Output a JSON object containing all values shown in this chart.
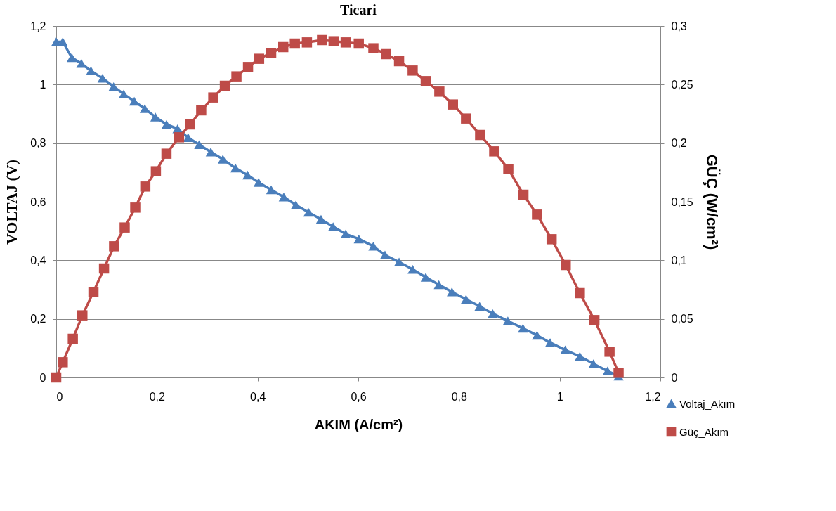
{
  "chart_data": {
    "type": "line",
    "title": "Ticari",
    "xlabel": "AKIM (A/cm²)",
    "ylabel": "VOLTAJ (V)",
    "y2label": "GÜÇ (W/cm²)",
    "xlim": [
      0,
      1.2
    ],
    "xticks": [
      0,
      {
        "value": 0.2,
        "label": "0,2"
      },
      {
        "value": 0.4,
        "label": "0,4"
      },
      {
        "value": 0.6,
        "label": "0,6"
      },
      {
        "value": 0.8,
        "label": "0,8"
      },
      1,
      {
        "value": 1.2,
        "label": "1,2"
      }
    ],
    "ylim": [
      0,
      1.2
    ],
    "yticks": [
      0,
      {
        "value": 0.2,
        "label": "0,2"
      },
      {
        "value": 0.4,
        "label": "0,4"
      },
      {
        "value": 0.6,
        "label": "0,6"
      },
      {
        "value": 0.8,
        "label": "0,8"
      },
      1,
      {
        "value": 1.2,
        "label": "1,2"
      }
    ],
    "y2lim": [
      0,
      0.3
    ],
    "y2ticks": [
      0,
      {
        "value": 0.05,
        "label": "0,05"
      },
      {
        "value": 0.1,
        "label": "0,1"
      },
      {
        "value": 0.15,
        "label": "0,15"
      },
      {
        "value": 0.2,
        "label": "0,2"
      },
      {
        "value": 0.25,
        "label": "0,25"
      },
      {
        "value": 0.3,
        "label": "0,3"
      }
    ],
    "grid": "y",
    "legend": "bottom right",
    "line_style": "solid",
    "series": [
      {
        "name": "Voltaj_Akım",
        "color": "#4a7ebb",
        "marker": "triangle",
        "x": [
          0,
          0.013,
          0.031,
          0.05,
          0.069,
          0.092,
          0.114,
          0.134,
          0.155,
          0.176,
          0.197,
          0.219,
          0.241,
          0.262,
          0.284,
          0.307,
          0.331,
          0.356,
          0.38,
          0.402,
          0.427,
          0.452,
          0.476,
          0.501,
          0.526,
          0.55,
          0.575,
          0.601,
          0.63,
          0.653,
          0.681,
          0.708,
          0.734,
          0.76,
          0.786,
          0.814,
          0.841,
          0.867,
          0.897,
          0.927,
          0.955,
          0.981,
          1.011,
          1.04,
          1.067,
          1.095,
          1.117
        ],
        "values": [
          1.146,
          1.146,
          1.092,
          1.072,
          1.047,
          1.022,
          0.993,
          0.968,
          0.943,
          0.918,
          0.889,
          0.864,
          0.849,
          0.819,
          0.795,
          0.77,
          0.745,
          0.715,
          0.691,
          0.666,
          0.641,
          0.616,
          0.589,
          0.564,
          0.54,
          0.515,
          0.49,
          0.473,
          0.448,
          0.418,
          0.394,
          0.369,
          0.342,
          0.317,
          0.292,
          0.267,
          0.243,
          0.218,
          0.193,
          0.168,
          0.144,
          0.119,
          0.094,
          0.072,
          0.047,
          0.022,
          0.005
        ]
      },
      {
        "name": "Güç_Akım",
        "color": "#be4b48",
        "marker": "square",
        "axis": "y2",
        "x": [
          0,
          0.013,
          0.033,
          0.052,
          0.074,
          0.095,
          0.115,
          0.136,
          0.157,
          0.177,
          0.198,
          0.219,
          0.244,
          0.266,
          0.288,
          0.312,
          0.335,
          0.358,
          0.381,
          0.403,
          0.427,
          0.451,
          0.474,
          0.498,
          0.528,
          0.551,
          0.575,
          0.601,
          0.63,
          0.655,
          0.681,
          0.708,
          0.734,
          0.761,
          0.788,
          0.814,
          0.842,
          0.87,
          0.898,
          0.928,
          0.955,
          0.984,
          1.012,
          1.04,
          1.069,
          1.099,
          1.117
        ],
        "values": [
          0,
          0.013,
          0.033,
          0.053,
          0.073,
          0.093,
          0.112,
          0.128,
          0.145,
          0.163,
          0.176,
          0.191,
          0.205,
          0.216,
          0.228,
          0.239,
          0.249,
          0.257,
          0.265,
          0.272,
          0.277,
          0.282,
          0.285,
          0.286,
          0.288,
          0.287,
          0.286,
          0.285,
          0.281,
          0.276,
          0.27,
          0.262,
          0.253,
          0.244,
          0.233,
          0.221,
          0.207,
          0.193,
          0.178,
          0.156,
          0.139,
          0.118,
          0.096,
          0.072,
          0.049,
          0.022,
          0.004
        ]
      }
    ]
  }
}
